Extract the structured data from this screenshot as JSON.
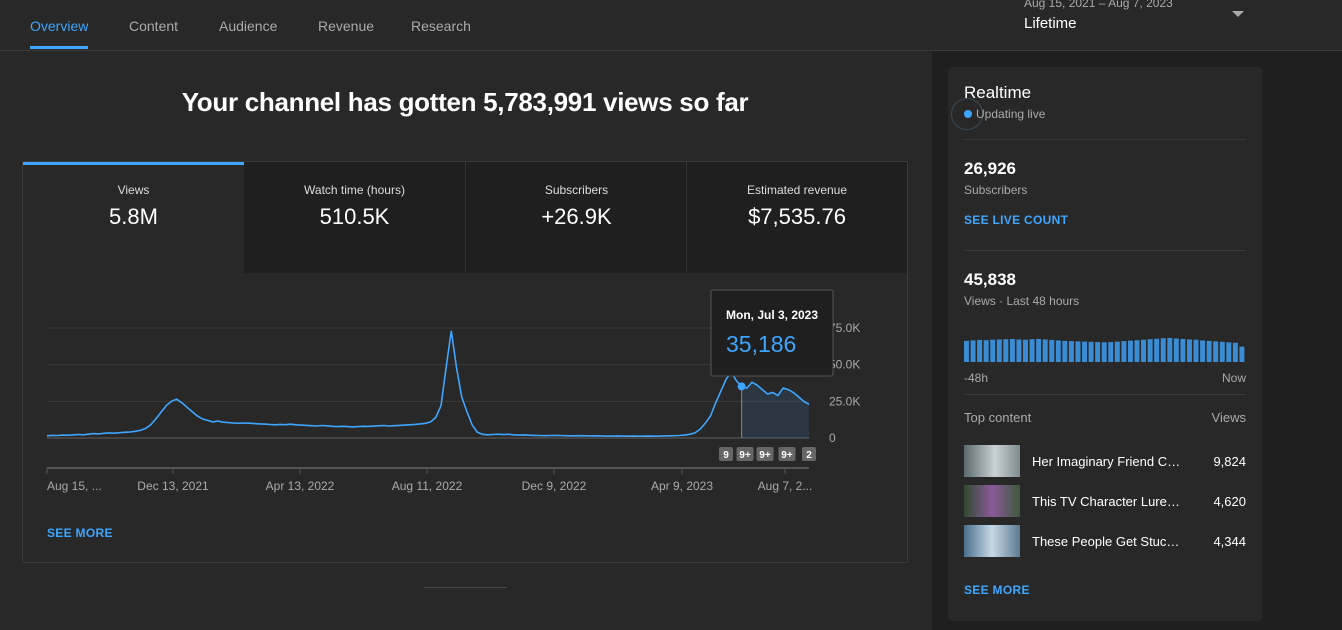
{
  "tabs": [
    {
      "label": "Overview",
      "active": true
    },
    {
      "label": "Content"
    },
    {
      "label": "Audience"
    },
    {
      "label": "Revenue"
    },
    {
      "label": "Research"
    }
  ],
  "date_picker": {
    "range": "Aug 15, 2021 – Aug 7, 2023",
    "label": "Lifetime"
  },
  "headline": "Your channel has gotten 5,783,991 views so far",
  "metrics": [
    {
      "label": "Views",
      "value": "5.8M"
    },
    {
      "label": "Watch time (hours)",
      "value": "510.5K"
    },
    {
      "label": "Subscribers",
      "value": "+26.9K"
    },
    {
      "label": "Estimated revenue",
      "value": "$7,535.76"
    }
  ],
  "chart_data": {
    "type": "line",
    "series": [
      {
        "values": [
          1500,
          1800,
          1700,
          2000,
          1900,
          2100,
          2400,
          2200,
          2600,
          3000,
          2800,
          3200,
          3500,
          3300,
          3600,
          3900,
          4100,
          4600,
          5200,
          6500,
          9000,
          13000,
          17500,
          22000,
          25000,
          26500,
          24000,
          21000,
          18000,
          15000,
          13000,
          12000,
          11000,
          11500,
          10800,
          10500,
          10200,
          10000,
          10200,
          10100,
          9800,
          9600,
          9500,
          9200,
          9000,
          9300,
          9100,
          9400,
          9000,
          8800,
          8600,
          8400,
          8200,
          8500,
          8300,
          8000,
          7800,
          8000,
          7800,
          7600,
          7800,
          8000,
          7900,
          8100,
          8300,
          8500,
          8200,
          8400,
          8600,
          8800,
          9000,
          9300,
          9600,
          10000,
          11000,
          14000,
          22000,
          48000,
          73000,
          48000,
          28000,
          18000,
          9000,
          4000,
          2500,
          2200,
          2400,
          2600,
          2300,
          2500,
          2200,
          2000,
          2100,
          1900,
          1800,
          1700,
          1600,
          1700,
          1800,
          1700,
          1600,
          1500,
          1500,
          1600,
          1500,
          1400,
          1500,
          1400,
          1300,
          1300,
          1400,
          1300,
          1200,
          1300,
          1200,
          1200,
          1300,
          1200,
          1300,
          1400,
          1500,
          1600,
          1700,
          2000,
          2500,
          3500,
          6000,
          10000,
          15000,
          24000,
          32000,
          40000,
          45000,
          39000,
          35186,
          34000,
          38000,
          36000,
          33000,
          30000,
          31000,
          29000,
          34000,
          33000,
          31000,
          28000,
          25000,
          23000
        ]
      }
    ],
    "x_tick_labels": [
      "Aug 15, ...",
      "Dec 13, 2021",
      "Apr 13, 2022",
      "Aug 11, 2022",
      "Dec 9, 2022",
      "Apr 9, 2023",
      "Aug 7, 2..."
    ],
    "y_tick_labels": [
      "0",
      "25.0K",
      "50.0K",
      "75.0K"
    ],
    "ylim": [
      0,
      75000
    ],
    "tooltip": {
      "date": "Mon, Jul 3, 2023",
      "value": "35,186"
    },
    "markers": [
      "9",
      "9+",
      "9+",
      "9+",
      "2"
    ],
    "line_color": "#3ea6ff",
    "grid": true
  },
  "see_more_label": "SEE MORE",
  "realtime": {
    "title": "Realtime",
    "status": "Updating live",
    "subscribers_value": "26,926",
    "subscribers_label": "Subscribers",
    "live_count_label": "SEE LIVE COUNT",
    "views_value": "45,838",
    "views_label": "Views · Last 48 hours",
    "bar_values": [
      880,
      900,
      920,
      910,
      930,
      940,
      950,
      960,
      940,
      930,
      950,
      960,
      940,
      920,
      900,
      880,
      870,
      860,
      850,
      840,
      830,
      820,
      830,
      850,
      870,
      890,
      910,
      930,
      950,
      970,
      990,
      1000,
      980,
      960,
      940,
      930,
      900,
      880,
      860,
      840,
      820,
      800,
      640
    ],
    "axis_start": "-48h",
    "axis_end": "Now",
    "top_content_label": "Top content",
    "views_column_label": "Views",
    "items": [
      {
        "title": "Her Imaginary Friend Comes to Life",
        "views": "9,824",
        "c1": "#5a6a6e",
        "c2": "#c9d2d4"
      },
      {
        "title": "This TV Character Lures Kids",
        "views": "4,620",
        "c1": "#2f4a2e",
        "c2": "#8a5a9a"
      },
      {
        "title": "These People Get Stuck In",
        "views": "4,344",
        "c1": "#4a6e8a",
        "c2": "#c8d8e6"
      }
    ],
    "see_more_label": "SEE MORE"
  }
}
